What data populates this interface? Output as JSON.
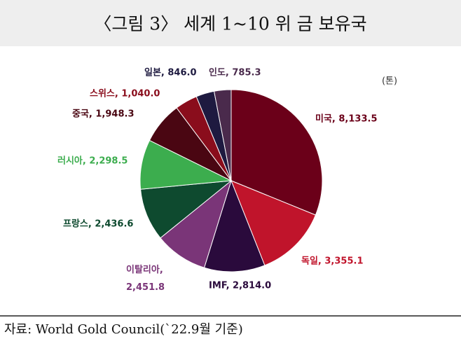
{
  "chart_data": {
    "type": "pie",
    "title": "〈그림 3〉 세계 1~10 위 금 보유국",
    "unit": "(톤)",
    "source": "자료: World Gold Council(`22.9월 기준)",
    "labels": [
      "미국, 8,133.5",
      "독일, 3,355.1",
      "IMF, 2,814.0",
      "이탈리아, 2,451.8",
      "프랑스, 2,436.6",
      "러시아, 2,298.5",
      "중국, 1,948.3",
      "스위스, 1,040.0",
      "일본, 846.0",
      "인도, 785.3"
    ],
    "values": [
      8133.5,
      3355.1,
      2814.0,
      2451.8,
      2436.6,
      2298.5,
      1948.3,
      1040.0,
      846.0,
      785.3
    ],
    "colors": [
      "#6b0019",
      "#c0142b",
      "#2a0a3c",
      "#7a3578",
      "#0e4a2f",
      "#3cad4e",
      "#4a0612",
      "#8a0d1c",
      "#1e1a40",
      "#4a2a4c"
    ]
  }
}
